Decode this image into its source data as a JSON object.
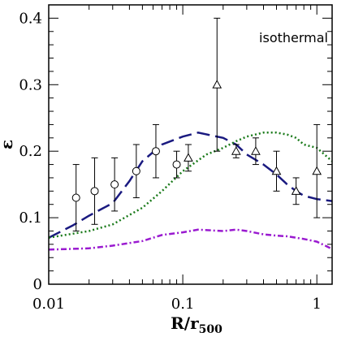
{
  "chart_data": {
    "type": "line",
    "title": "",
    "xlabel": "R/r",
    "xlabel_sub": "500",
    "ylabel": "ε",
    "xscale": "log",
    "xlim": [
      0.01,
      1.3
    ],
    "ylim": [
      0,
      0.42
    ],
    "x_ticks": [
      {
        "value": 0.01,
        "label": "0.01"
      },
      {
        "value": 0.1,
        "label": "0.1"
      },
      {
        "value": 1,
        "label": "1"
      }
    ],
    "y_ticks": [
      {
        "value": 0,
        "label": "0"
      },
      {
        "value": 0.1,
        "label": "0.1"
      },
      {
        "value": 0.2,
        "label": "0.2"
      },
      {
        "value": 0.3,
        "label": "0.3"
      },
      {
        "value": 0.4,
        "label": "0.4"
      }
    ],
    "annotations": [
      {
        "text": "isothermal",
        "location": "top-right"
      }
    ],
    "series": [
      {
        "style": "long-dash",
        "color": "#1a1a80",
        "x": [
          0.01,
          0.015,
          0.02,
          0.03,
          0.04,
          0.05,
          0.07,
          0.1,
          0.13,
          0.2,
          0.25,
          0.3,
          0.4,
          0.5,
          0.6,
          0.7,
          0.8,
          1.0,
          1.3
        ],
        "y": [
          0.07,
          0.088,
          0.103,
          0.122,
          0.155,
          0.185,
          0.21,
          0.222,
          0.228,
          0.22,
          0.21,
          0.195,
          0.18,
          0.165,
          0.15,
          0.14,
          0.133,
          0.128,
          0.125
        ]
      },
      {
        "style": "dotted",
        "color": "#1a7a1a",
        "x": [
          0.01,
          0.02,
          0.03,
          0.05,
          0.07,
          0.1,
          0.15,
          0.2,
          0.25,
          0.3,
          0.4,
          0.5,
          0.6,
          0.7,
          0.8,
          1.0,
          1.3
        ],
        "y": [
          0.07,
          0.08,
          0.09,
          0.115,
          0.14,
          0.17,
          0.195,
          0.205,
          0.215,
          0.222,
          0.228,
          0.228,
          0.225,
          0.22,
          0.21,
          0.205,
          0.185
        ]
      },
      {
        "style": "dash-dot",
        "color": "#9a1ad0",
        "x": [
          0.01,
          0.02,
          0.03,
          0.05,
          0.07,
          0.1,
          0.13,
          0.2,
          0.25,
          0.3,
          0.4,
          0.5,
          0.6,
          0.8,
          1.0,
          1.3
        ],
        "y": [
          0.052,
          0.054,
          0.058,
          0.065,
          0.074,
          0.078,
          0.082,
          0.08,
          0.082,
          0.08,
          0.075,
          0.073,
          0.072,
          0.068,
          0.064,
          0.053
        ]
      }
    ],
    "points": [
      {
        "marker": "circle",
        "x": 0.016,
        "y": 0.13,
        "ylo": 0.08,
        "yhi": 0.18
      },
      {
        "marker": "circle",
        "x": 0.022,
        "y": 0.14,
        "ylo": 0.09,
        "yhi": 0.19
      },
      {
        "marker": "circle",
        "x": 0.031,
        "y": 0.15,
        "ylo": 0.11,
        "yhi": 0.19
      },
      {
        "marker": "circle",
        "x": 0.045,
        "y": 0.17,
        "ylo": 0.13,
        "yhi": 0.21
      },
      {
        "marker": "circle",
        "x": 0.063,
        "y": 0.2,
        "ylo": 0.16,
        "yhi": 0.24
      },
      {
        "marker": "circle",
        "x": 0.09,
        "y": 0.18,
        "ylo": 0.16,
        "yhi": 0.2
      },
      {
        "marker": "triangle",
        "x": 0.11,
        "y": 0.19,
        "ylo": 0.17,
        "yhi": 0.21
      },
      {
        "marker": "triangle",
        "x": 0.18,
        "y": 0.3,
        "ylo": 0.2,
        "yhi": 0.4
      },
      {
        "marker": "triangle",
        "x": 0.25,
        "y": 0.2,
        "ylo": 0.19,
        "yhi": 0.21
      },
      {
        "marker": "triangle",
        "x": 0.35,
        "y": 0.2,
        "ylo": 0.18,
        "yhi": 0.22
      },
      {
        "marker": "triangle",
        "x": 0.5,
        "y": 0.17,
        "ylo": 0.14,
        "yhi": 0.2
      },
      {
        "marker": "triangle",
        "x": 0.7,
        "y": 0.14,
        "ylo": 0.12,
        "yhi": 0.16
      },
      {
        "marker": "triangle",
        "x": 1.0,
        "y": 0.17,
        "ylo": 0.1,
        "yhi": 0.24
      }
    ]
  }
}
